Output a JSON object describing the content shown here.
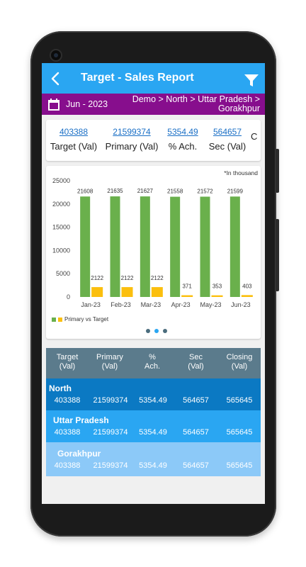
{
  "app_bar": {
    "title": "Target - Sales Report",
    "back_icon": "back-arrow-icon",
    "filter_icon": "filter-icon"
  },
  "sub_bar": {
    "period": "Jun - 2023",
    "breadcrumb": "Demo > North > Uttar Pradesh > Gorakhpur",
    "color": "#870e8d"
  },
  "summary": [
    {
      "value": "403388",
      "label": "Target (Val)"
    },
    {
      "value": "21599374",
      "label": "Primary (Val)"
    },
    {
      "value": "5354.49",
      "label": "% Ach."
    },
    {
      "value": "564657",
      "label": "Sec (Val)"
    },
    {
      "value": "",
      "label": "C"
    }
  ],
  "chart_note": "*In thousand",
  "chart_data": {
    "type": "bar",
    "categories": [
      "Jan-23",
      "Feb-23",
      "Mar-23",
      "Apr-23",
      "May-23",
      "Jun-23"
    ],
    "series": [
      {
        "values": [
          21608,
          21635,
          21627,
          21558,
          21572,
          21599
        ],
        "color": "#6ab04c"
      },
      {
        "values": [
          2122,
          2122,
          2122,
          371,
          353,
          403
        ],
        "color": "#fbbf0e"
      }
    ],
    "legend_label": "Primary vs Target",
    "yticks": [
      0,
      5000,
      10000,
      15000,
      20000,
      25000
    ],
    "ylim": [
      0,
      25000
    ],
    "grid": false,
    "legend_position": "bottom-left"
  },
  "pager": {
    "pages": 3,
    "active": 1
  },
  "table": {
    "headers": [
      "Target\n(Val)",
      "Primary\n(Val)",
      "%\nAch.",
      "Sec\n(Val)",
      "Closing\n(Val)"
    ],
    "rows": [
      {
        "name": "North",
        "values": [
          "403388",
          "21599374",
          "5354.49",
          "564657",
          "565645"
        ]
      },
      {
        "name": "Uttar Pradesh",
        "values": [
          "403388",
          "21599374",
          "5354.49",
          "564657",
          "565645"
        ]
      },
      {
        "name": "Gorakhpur",
        "values": [
          "403388",
          "21599374",
          "5354.49",
          "564657",
          "565645"
        ]
      }
    ]
  }
}
